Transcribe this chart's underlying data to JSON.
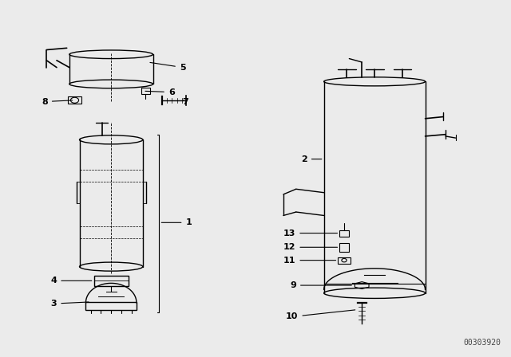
{
  "background_color": "#ebebeb",
  "part_number": "00303920",
  "line_color": "#000000"
}
